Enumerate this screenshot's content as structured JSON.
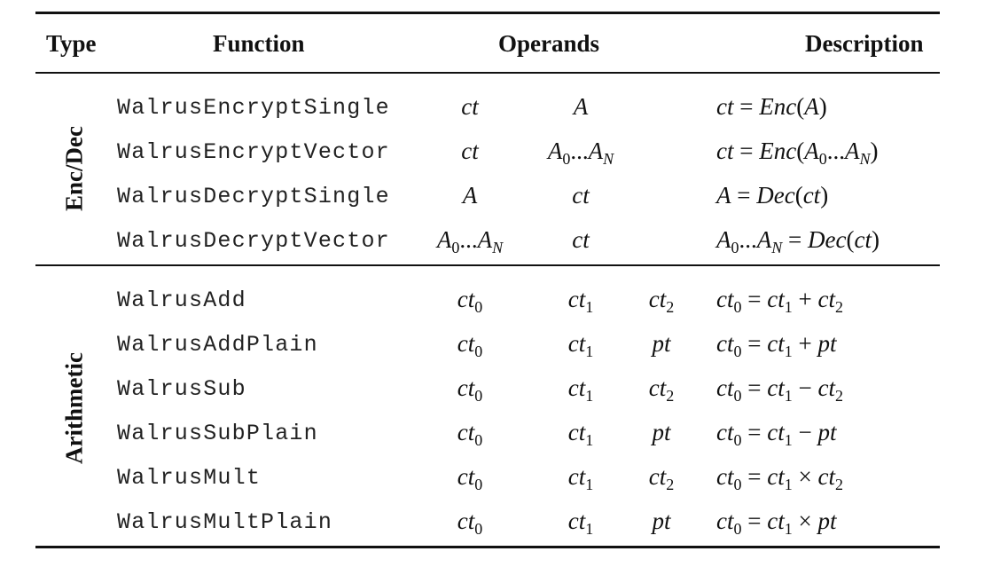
{
  "headers": {
    "type": "Type",
    "function": "Function",
    "operands": "Operands",
    "description": "Description"
  },
  "groups": [
    {
      "label": "Enc/Dec",
      "rows": [
        {
          "function": "WalrusEncryptSingle",
          "op1": "ct",
          "op2": "A",
          "op3": "",
          "desc": "ct = Enc(A)"
        },
        {
          "function": "WalrusEncryptVector",
          "op1": "ct",
          "op2": "A0...AN",
          "op3": "",
          "desc": "ct = Enc(A0...AN)"
        },
        {
          "function": "WalrusDecryptSingle",
          "op1": "A",
          "op2": "ct",
          "op3": "",
          "desc": "A = Dec(ct)"
        },
        {
          "function": "WalrusDecryptVector",
          "op1": "A0...AN",
          "op2": "ct",
          "op3": "",
          "desc": "A0...AN = Dec(ct)"
        }
      ]
    },
    {
      "label": "Arithmetic",
      "rows": [
        {
          "function": "WalrusAdd",
          "op1": "ct0",
          "op2": "ct1",
          "op3": "ct2",
          "desc": "ct0 = ct1 + ct2"
        },
        {
          "function": "WalrusAddPlain",
          "op1": "ct0",
          "op2": "ct1",
          "op3": "pt",
          "desc": "ct0 = ct1 + pt"
        },
        {
          "function": "WalrusSub",
          "op1": "ct0",
          "op2": "ct1",
          "op3": "ct2",
          "desc": "ct0 = ct1 − ct2"
        },
        {
          "function": "WalrusSubPlain",
          "op1": "ct0",
          "op2": "ct1",
          "op3": "pt",
          "desc": "ct0 = ct1 − pt"
        },
        {
          "function": "WalrusMult",
          "op1": "ct0",
          "op2": "ct1",
          "op3": "ct2",
          "desc": "ct0 = ct1 × ct2"
        },
        {
          "function": "WalrusMultPlain",
          "op1": "ct0",
          "op2": "ct1",
          "op3": "pt",
          "desc": "ct0 = ct1 × pt"
        }
      ]
    }
  ]
}
